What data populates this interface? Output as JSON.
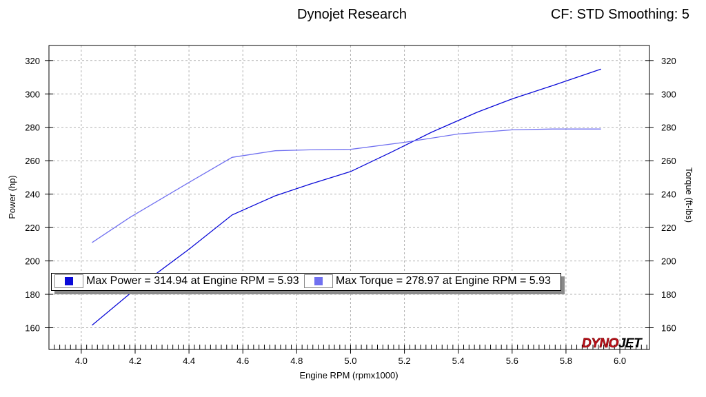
{
  "header": {
    "title": "Dynojet Research",
    "cf_info": "CF: STD Smoothing: 5"
  },
  "logo": {
    "part1": "DYNO",
    "part2": "JET"
  },
  "legend": {
    "power": "Max Power = 314.94 at Engine RPM = 5.93",
    "torque": "Max Torque = 278.97 at Engine RPM = 5.93"
  },
  "colors": {
    "power": "#0a0ad8",
    "torque": "#7070f0",
    "grid": "#b0b0b0"
  },
  "chart_data": {
    "type": "line",
    "title": "Dynojet Research",
    "xlabel": "Engine RPM (rpmx1000)",
    "ylabel": "Power (hp)",
    "y2label": "Torque (ft-lbs)",
    "xlim": [
      3.88,
      6.11
    ],
    "ylim": [
      147,
      329
    ],
    "xticks": [
      "4.0",
      "4.2",
      "4.4",
      "4.6",
      "4.8",
      "5.0",
      "5.2",
      "5.4",
      "5.6",
      "5.8",
      "6.0"
    ],
    "yticks": [
      "160",
      "180",
      "200",
      "220",
      "240",
      "260",
      "280",
      "300",
      "320"
    ],
    "grid": true,
    "series": [
      {
        "name": "Power",
        "axis": "left",
        "x": [
          4.04,
          4.2,
          4.4,
          4.56,
          4.72,
          4.85,
          5.0,
          5.15,
          5.3,
          5.47,
          5.6,
          5.75,
          5.93
        ],
        "y": [
          161.5,
          183,
          207,
          227.5,
          239,
          246,
          253.5,
          265,
          277,
          289,
          297,
          305,
          314.9
        ]
      },
      {
        "name": "Torque",
        "axis": "right",
        "x": [
          4.04,
          4.18,
          4.4,
          4.56,
          4.72,
          4.85,
          5.0,
          5.2,
          5.4,
          5.6,
          5.75,
          5.93
        ],
        "y": [
          211,
          226,
          247,
          262,
          266,
          266.5,
          266.8,
          271,
          276,
          278.5,
          279,
          279
        ]
      }
    ]
  }
}
